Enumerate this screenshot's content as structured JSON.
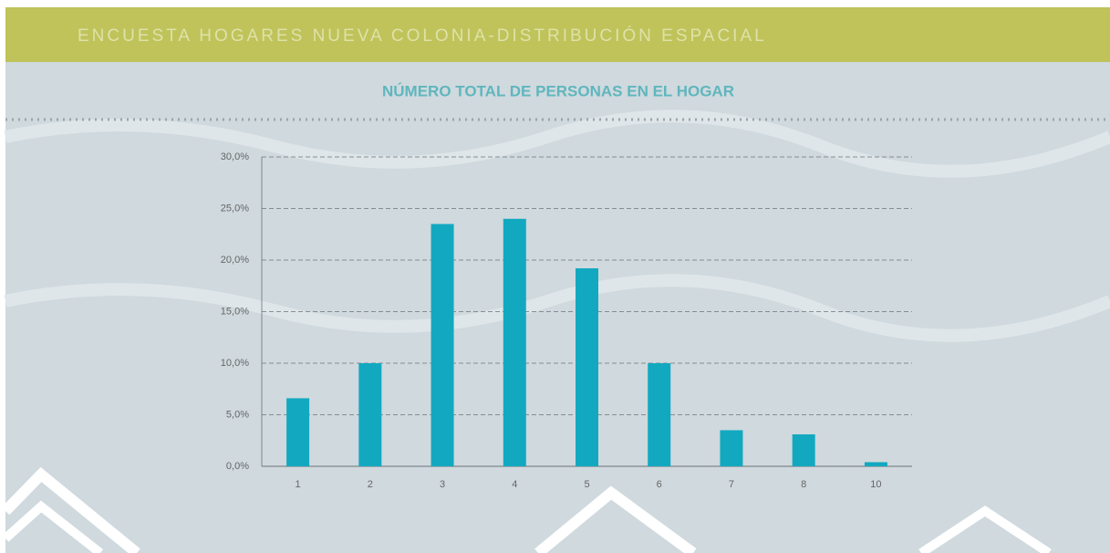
{
  "header": {
    "title": "ENCUESTA HOGARES NUEVA COLONIA-DISTRIBUCIÓN ESPACIAL"
  },
  "chart_data": {
    "type": "bar",
    "title": "NÚMERO TOTAL DE PERSONAS EN EL HOGAR",
    "categories": [
      "1",
      "2",
      "3",
      "4",
      "5",
      "6",
      "7",
      "8",
      "10"
    ],
    "values": [
      6.6,
      10.0,
      23.5,
      24.0,
      19.2,
      10.0,
      3.5,
      3.1,
      0.4
    ],
    "color": "#12a9c0",
    "ylim": [
      0,
      30
    ],
    "yticks": [
      {
        "value": 0,
        "label": "0,0%"
      },
      {
        "value": 5,
        "label": "5,0%"
      },
      {
        "value": 10,
        "label": "10,0%"
      },
      {
        "value": 15,
        "label": "15,0%"
      },
      {
        "value": 20,
        "label": "20,0%"
      },
      {
        "value": 25,
        "label": "25,0%"
      },
      {
        "value": 30,
        "label": "30,0%"
      }
    ],
    "grid": true
  }
}
